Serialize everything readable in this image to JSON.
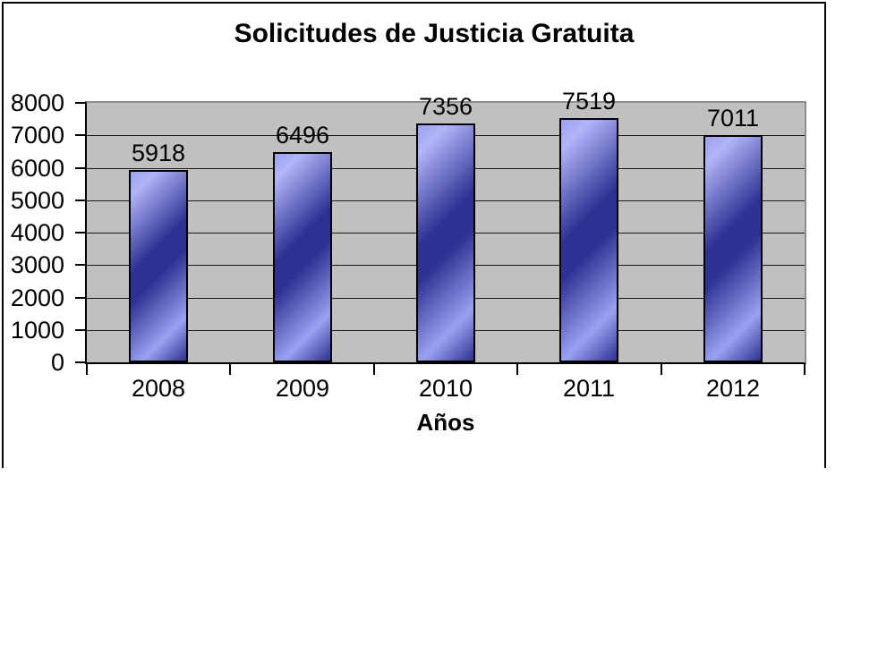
{
  "chart_data": {
    "type": "bar",
    "title": "Solicitudes de Justicia Gratuita",
    "categories": [
      "2008",
      "2009",
      "2010",
      "2011",
      "2012"
    ],
    "values": [
      5918,
      6496,
      7356,
      7519,
      7011
    ],
    "xlabel": "Años",
    "ylabel": "",
    "ylim": [
      0,
      8000
    ],
    "ytick_step": 1000,
    "ytick_labels": [
      "0",
      "1000",
      "2000",
      "3000",
      "4000",
      "5000",
      "6000",
      "7000",
      "8000"
    ],
    "grid": true,
    "legend": false,
    "plot_background": "#c0c0c0",
    "plot_border_color": "#8e8e8e",
    "bar_border_color": "#000000",
    "bar_color_light": "#9aa1f0",
    "bar_color_dark": "#2e3192",
    "value_labels_shown": true
  }
}
